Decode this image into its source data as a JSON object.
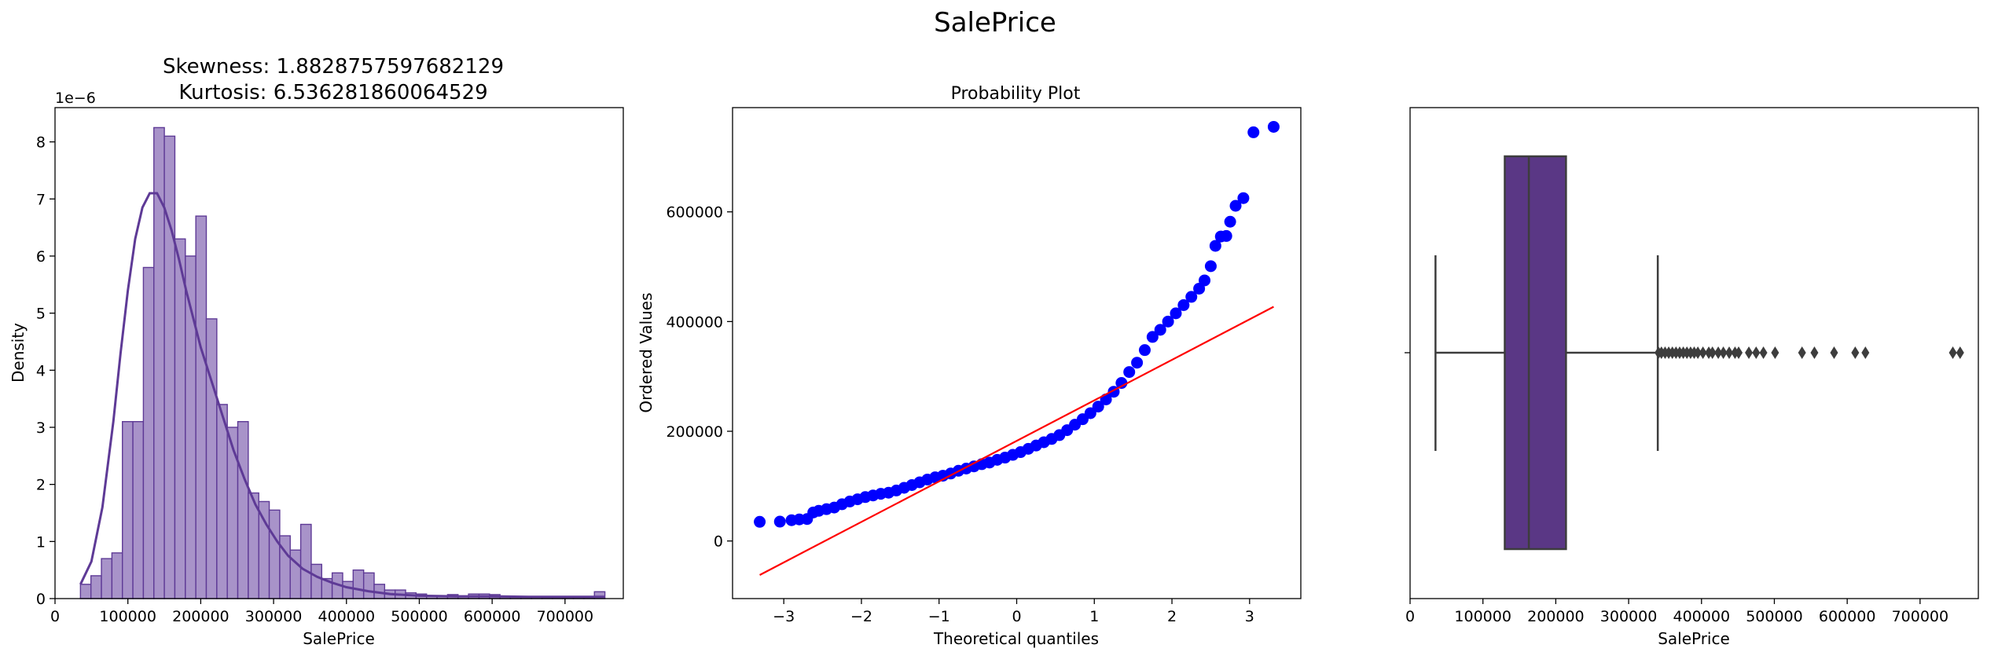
{
  "suptitle": "SalePrice",
  "chart_data": [
    {
      "type": "histogram",
      "title_lines": [
        "Skewness: 1.8828757597682129",
        "Kurtosis: 6.536281860064529"
      ],
      "xlabel": "SalePrice",
      "ylabel": "Density",
      "offset_text": "1e−6",
      "xlim": [
        0,
        780000
      ],
      "ylim": [
        0,
        8.6
      ],
      "xticks": [
        0,
        100000,
        200000,
        300000,
        400000,
        500000,
        600000,
        700000
      ],
      "xtick_labels": [
        "0",
        "100000",
        "200000",
        "300000",
        "400000",
        "500000",
        "600000",
        "700000"
      ],
      "yticks": [
        0,
        1,
        2,
        3,
        4,
        5,
        6,
        7,
        8
      ],
      "ytick_labels": [
        "0",
        "1",
        "2",
        "3",
        "4",
        "5",
        "6",
        "7",
        "8"
      ],
      "bin_start": 34900,
      "bin_width": 14397,
      "densities": [
        0.25,
        0.4,
        0.7,
        0.8,
        3.1,
        3.1,
        5.8,
        8.25,
        8.1,
        6.3,
        6.0,
        6.7,
        4.9,
        3.4,
        3.0,
        3.1,
        1.85,
        1.7,
        1.55,
        1.1,
        0.85,
        1.3,
        0.6,
        0.35,
        0.45,
        0.3,
        0.5,
        0.45,
        0.25,
        0.15,
        0.15,
        0.1,
        0.08,
        0.05,
        0.05,
        0.07,
        0.04,
        0.08,
        0.08,
        0.07,
        0.04,
        0.03,
        0.03,
        0.03,
        0.02,
        0.02,
        0.02,
        0.02,
        0.02,
        0.12
      ],
      "kde": {
        "x": [
          35000,
          50000,
          65000,
          80000,
          90000,
          100000,
          110000,
          120000,
          130000,
          140000,
          150000,
          160000,
          170000,
          180000,
          190000,
          200000,
          215000,
          230000,
          245000,
          260000,
          275000,
          290000,
          305000,
          320000,
          340000,
          360000,
          380000,
          400000,
          430000,
          460000,
          500000,
          550000,
          600000,
          650000,
          700000,
          755000
        ],
        "y": [
          0.25,
          0.65,
          1.6,
          3.1,
          4.3,
          5.4,
          6.3,
          6.85,
          7.1,
          7.1,
          6.85,
          6.45,
          5.95,
          5.4,
          4.9,
          4.4,
          3.8,
          3.2,
          2.6,
          2.1,
          1.65,
          1.3,
          1.0,
          0.75,
          0.52,
          0.38,
          0.28,
          0.2,
          0.13,
          0.08,
          0.05,
          0.04,
          0.04,
          0.03,
          0.03,
          0.03
        ]
      },
      "color_fill": "#a893c9",
      "color_line": "#5e3a96"
    },
    {
      "type": "scatter",
      "title": "Probability Plot",
      "xlabel": "Theoretical quantiles",
      "ylabel": "Ordered Values",
      "xlim": [
        -3.66,
        3.66
      ],
      "ylim": [
        -105000,
        790000
      ],
      "xticks": [
        -3,
        -2,
        -1,
        0,
        1,
        2,
        3
      ],
      "xtick_labels": [
        "−3",
        "−2",
        "−1",
        "0",
        "1",
        "2",
        "3"
      ],
      "yticks": [
        0,
        200000,
        400000,
        600000
      ],
      "ytick_labels": [
        "0",
        "200000",
        "400000",
        "600000"
      ],
      "points": [
        [
          -3.31,
          34900
        ],
        [
          -3.05,
          35300
        ],
        [
          -2.9,
          37900
        ],
        [
          -2.8,
          39300
        ],
        [
          -2.7,
          40000
        ],
        [
          -2.62,
          52000
        ],
        [
          -2.55,
          55000
        ],
        [
          -2.45,
          58000
        ],
        [
          -2.35,
          61000
        ],
        [
          -2.25,
          67000
        ],
        [
          -2.15,
          72000
        ],
        [
          -2.05,
          76000
        ],
        [
          -1.95,
          80000
        ],
        [
          -1.85,
          83000
        ],
        [
          -1.75,
          86000
        ],
        [
          -1.65,
          88000
        ],
        [
          -1.55,
          92000
        ],
        [
          -1.45,
          97000
        ],
        [
          -1.35,
          102000
        ],
        [
          -1.25,
          107000
        ],
        [
          -1.15,
          112000
        ],
        [
          -1.05,
          116000
        ],
        [
          -0.95,
          119000
        ],
        [
          -0.85,
          123000
        ],
        [
          -0.75,
          128000
        ],
        [
          -0.65,
          132000
        ],
        [
          -0.55,
          136000
        ],
        [
          -0.45,
          140000
        ],
        [
          -0.35,
          143000
        ],
        [
          -0.25,
          148000
        ],
        [
          -0.15,
          152000
        ],
        [
          -0.05,
          157000
        ],
        [
          0.05,
          162000
        ],
        [
          0.15,
          168000
        ],
        [
          0.25,
          174000
        ],
        [
          0.35,
          180000
        ],
        [
          0.45,
          186000
        ],
        [
          0.55,
          193000
        ],
        [
          0.65,
          202000
        ],
        [
          0.75,
          212000
        ],
        [
          0.85,
          222000
        ],
        [
          0.95,
          233000
        ],
        [
          1.05,
          245000
        ],
        [
          1.15,
          258000
        ],
        [
          1.25,
          272000
        ],
        [
          1.35,
          288000
        ],
        [
          1.45,
          308000
        ],
        [
          1.55,
          325000
        ],
        [
          1.65,
          348000
        ],
        [
          1.75,
          372000
        ],
        [
          1.85,
          385000
        ],
        [
          1.95,
          400000
        ],
        [
          2.05,
          415000
        ],
        [
          2.15,
          430000
        ],
        [
          2.25,
          445000
        ],
        [
          2.35,
          460000
        ],
        [
          2.42,
          475000
        ],
        [
          2.5,
          501000
        ],
        [
          2.56,
          538000
        ],
        [
          2.63,
          555000
        ],
        [
          2.7,
          556000
        ],
        [
          2.75,
          582000
        ],
        [
          2.82,
          611000
        ],
        [
          2.92,
          625000
        ],
        [
          3.05,
          745000
        ],
        [
          3.31,
          755000
        ]
      ],
      "fit_line": [
        [
          -3.31,
          -62000
        ],
        [
          3.31,
          427000
        ]
      ],
      "marker_color": "#0000ff",
      "line_color": "#ff0000"
    },
    {
      "type": "box",
      "xlabel": "SalePrice",
      "xlim": [
        0,
        780000
      ],
      "xticks": [
        0,
        100000,
        200000,
        300000,
        400000,
        500000,
        600000,
        700000
      ],
      "xtick_labels": [
        "0",
        "100000",
        "200000",
        "300000",
        "400000",
        "500000",
        "600000",
        "700000"
      ],
      "min": 34900,
      "q1": 129975,
      "median": 163000,
      "q3": 214000,
      "max": 340000,
      "outliers": [
        341000,
        345000,
        350000,
        355000,
        360000,
        365000,
        370000,
        375000,
        380000,
        385000,
        390000,
        395000,
        402000,
        410000,
        415000,
        423000,
        430000,
        438000,
        446000,
        451000,
        465000,
        475000,
        485000,
        501000,
        538000,
        555000,
        582000,
        611000,
        625000,
        745000,
        755000
      ],
      "box_color": "#5a3785",
      "line_color": "#3d3d3d"
    }
  ]
}
